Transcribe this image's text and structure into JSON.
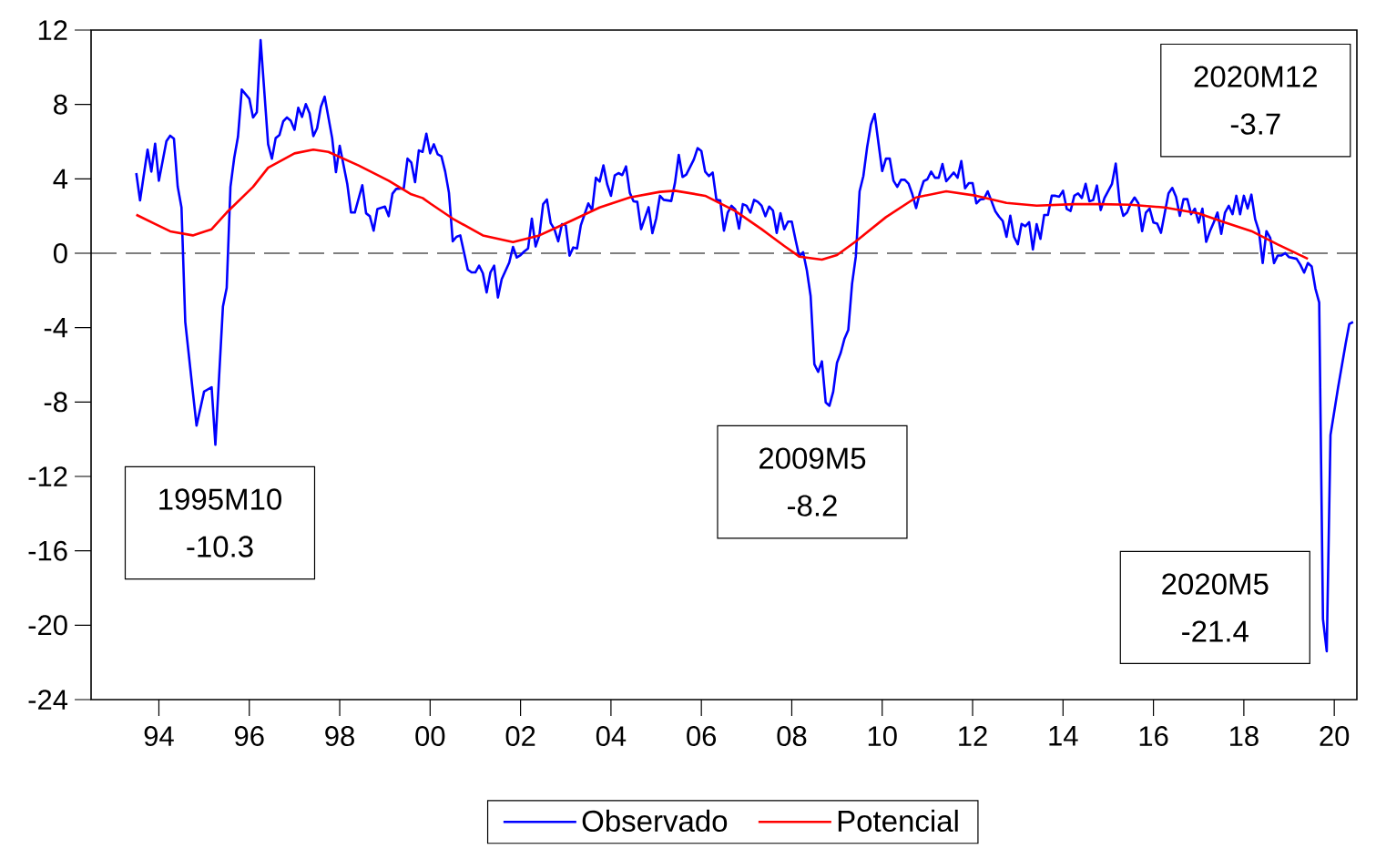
{
  "chart_data": {
    "type": "line",
    "series": [
      {
        "name": "Observado",
        "color": "#0000ff",
        "x": [
          "1994-01",
          "1994-02",
          "1994-04",
          "1994-05",
          "1994-06",
          "1994-07",
          "1994-09",
          "1994-10",
          "1994-11",
          "1994-12",
          "1995-01",
          "1995-02",
          "1995-04",
          "1995-05",
          "1995-07",
          "1995-09",
          "1995-10",
          "1995-12",
          "1996-01",
          "1996-02",
          "1996-03",
          "1996-04",
          "1996-05",
          "1996-07",
          "1996-08",
          "1996-09",
          "1996-10",
          "1996-12",
          "1997-01",
          "1997-02",
          "1997-03",
          "1997-04",
          "1997-05",
          "1997-06",
          "1997-07",
          "1997-08",
          "1997-09",
          "1997-10",
          "1997-11",
          "1997-12",
          "1998-01",
          "1998-02",
          "1998-03",
          "1998-05",
          "1998-06",
          "1998-07",
          "1998-09",
          "1998-10",
          "1998-11",
          "1999-01",
          "1999-02",
          "1999-03",
          "1999-04",
          "1999-05",
          "1999-07",
          "1999-08",
          "1999-09",
          "1999-10",
          "1999-12",
          "2000-01",
          "2000-02",
          "2000-03",
          "2000-04",
          "2000-05",
          "2000-06",
          "2000-07",
          "2000-08",
          "2000-09",
          "2000-10",
          "2000-11",
          "2000-12",
          "2001-01",
          "2001-02",
          "2001-03",
          "2001-05",
          "2001-06",
          "2001-07",
          "2001-08",
          "2001-09",
          "2001-10",
          "2001-11",
          "2001-12",
          "2002-01",
          "2002-02",
          "2002-04",
          "2002-05",
          "2002-06",
          "2002-07",
          "2002-08",
          "2002-09",
          "2002-10",
          "2002-11",
          "2002-12",
          "2003-01",
          "2003-02",
          "2003-03",
          "2003-04",
          "2003-05",
          "2003-06",
          "2003-07",
          "2003-08",
          "2003-09",
          "2003-10",
          "2003-11",
          "2004-01",
          "2004-02",
          "2004-03",
          "2004-04",
          "2004-05",
          "2004-06",
          "2004-07",
          "2004-08",
          "2004-09",
          "2004-10",
          "2004-11",
          "2004-12",
          "2005-01",
          "2005-02",
          "2005-03",
          "2005-05",
          "2005-06",
          "2005-07",
          "2005-08",
          "2005-09",
          "2005-11",
          "2005-12",
          "2006-01",
          "2006-02",
          "2006-03",
          "2006-05",
          "2006-06",
          "2006-07",
          "2006-08",
          "2006-09",
          "2006-10",
          "2006-11",
          "2006-12",
          "2007-01",
          "2007-02",
          "2007-03",
          "2007-04",
          "2007-05",
          "2007-06",
          "2007-07",
          "2007-08",
          "2007-09",
          "2007-10",
          "2007-11",
          "2007-12",
          "2008-01",
          "2008-02",
          "2008-03",
          "2008-04",
          "2008-05",
          "2008-06",
          "2008-07",
          "2008-08",
          "2008-09",
          "2008-10",
          "2008-11",
          "2008-12",
          "2009-01",
          "2009-02",
          "2009-03",
          "2009-04",
          "2009-05",
          "2009-06",
          "2009-07",
          "2009-08",
          "2009-09",
          "2009-10",
          "2009-11",
          "2009-12",
          "2010-01",
          "2010-02",
          "2010-03",
          "2010-04",
          "2010-05",
          "2010-06",
          "2010-07",
          "2010-08",
          "2010-09",
          "2010-10",
          "2010-11",
          "2010-12",
          "2011-01",
          "2011-02",
          "2011-03",
          "2011-04",
          "2011-05",
          "2011-06",
          "2011-07",
          "2011-08",
          "2011-09",
          "2011-10",
          "2011-11",
          "2011-12",
          "2012-02",
          "2012-03",
          "2012-04",
          "2012-05",
          "2012-06",
          "2012-07",
          "2012-08",
          "2012-09",
          "2012-10",
          "2012-11",
          "2012-12",
          "2013-01",
          "2013-02",
          "2013-03",
          "2013-04",
          "2013-05",
          "2013-06",
          "2013-07",
          "2013-08",
          "2013-09",
          "2013-10",
          "2013-11",
          "2013-12",
          "2014-01",
          "2014-02",
          "2014-03",
          "2014-04",
          "2014-05",
          "2014-06",
          "2014-07",
          "2014-08",
          "2014-09",
          "2014-10",
          "2014-11",
          "2014-12",
          "2015-01",
          "2015-02",
          "2015-03",
          "2015-04",
          "2015-05",
          "2015-06",
          "2015-08",
          "2015-09",
          "2015-10",
          "2015-11",
          "2015-12",
          "2016-01",
          "2016-02",
          "2016-03",
          "2016-04",
          "2016-05",
          "2016-06",
          "2016-07",
          "2016-08",
          "2016-09",
          "2016-11",
          "2016-12",
          "2017-01",
          "2017-02",
          "2017-03",
          "2017-04",
          "2017-05",
          "2017-06",
          "2017-07",
          "2017-08",
          "2017-09",
          "2017-10",
          "2017-11",
          "2017-12",
          "2018-01",
          "2018-02",
          "2018-03",
          "2018-04",
          "2018-05",
          "2018-06",
          "2018-07",
          "2018-08",
          "2018-09",
          "2018-10",
          "2018-11",
          "2018-12",
          "2019-01",
          "2019-02",
          "2019-03",
          "2019-04",
          "2019-05",
          "2019-06",
          "2019-07",
          "2019-09",
          "2019-10",
          "2019-11",
          "2019-12",
          "2020-01",
          "2020-02",
          "2020-03",
          "2020-04",
          "2020-05",
          "2020-06",
          "2020-08",
          "2020-10",
          "2020-11",
          "2020-12"
        ],
        "values": [
          4.31,
          2.84,
          5.57,
          4.39,
          5.89,
          3.9,
          6.02,
          6.32,
          6.16,
          3.57,
          2.46,
          -3.69,
          -7.44,
          -9.27,
          -7.44,
          -7.2,
          -10.3,
          -2.87,
          -1.86,
          3.57,
          5.13,
          6.27,
          8.8,
          8.31,
          7.3,
          7.58,
          11.46,
          5.86,
          5.08,
          6.19,
          6.35,
          7.09,
          7.3,
          7.13,
          6.64,
          7.82,
          7.33,
          8.02,
          7.53,
          6.3,
          6.72,
          7.87,
          8.42,
          6.19,
          4.36,
          5.78,
          3.74,
          2.19,
          2.19,
          3.66,
          2.15,
          1.99,
          1.21,
          2.38,
          2.51,
          1.99,
          3.2,
          3.46,
          3.49,
          5.09,
          4.88,
          3.82,
          5.53,
          5.45,
          6.43,
          5.37,
          5.86,
          5.32,
          5.21,
          4.39,
          3.25,
          0.64,
          0.88,
          0.96,
          -0.88,
          -1.03,
          -1.03,
          -0.67,
          -1.08,
          -2.11,
          -1.04,
          -0.67,
          -2.38,
          -1.4,
          -0.5,
          0.34,
          -0.23,
          -0.1,
          0.1,
          0.26,
          1.86,
          0.36,
          0.96,
          2.64,
          2.89,
          1.62,
          1.29,
          0.64,
          1.57,
          1.5,
          -0.13,
          0.31,
          0.26,
          1.5,
          2.68,
          2.32,
          4.06,
          3.85,
          4.72,
          3.71,
          3.09,
          4.18,
          4.31,
          4.2,
          4.67,
          3.25,
          2.79,
          2.76,
          1.29,
          2.48,
          1.08,
          1.86,
          3.09,
          2.87,
          2.81,
          3.79,
          5.29,
          4.1,
          4.23,
          5.04,
          5.65,
          5.5,
          4.39,
          4.15,
          4.34,
          2.87,
          2.84,
          1.21,
          2.19,
          2.55,
          2.35,
          1.32,
          2.64,
          2.55,
          2.19,
          2.87,
          2.76,
          2.55,
          1.99,
          2.51,
          2.3,
          1.09,
          2.15,
          1.29,
          1.7,
          1.7,
          0.72,
          -0.18,
          0.06,
          -0.92,
          -2.3,
          -5.97,
          -6.38,
          -5.81,
          -8.02,
          -8.2,
          -7.44,
          -5.89,
          -5.35,
          -4.59,
          -4.13,
          -1.65,
          -0.18,
          3.33,
          4.15,
          5.7,
          6.92,
          7.49,
          5.94,
          4.42,
          5.09,
          5.09,
          3.9,
          3.57,
          3.95,
          3.95,
          3.74,
          3.17,
          2.43,
          3.25,
          3.87,
          3.98,
          4.39,
          4.06,
          4.06,
          4.8,
          3.87,
          4.34,
          4.06,
          4.96,
          3.49,
          3.77,
          3.77,
          2.68,
          2.89,
          2.92,
          3.33,
          2.81,
          2.27,
          1.97,
          1.73,
          0.88,
          2.02,
          0.88,
          0.48,
          1.58,
          1.45,
          1.67,
          0.2,
          1.57,
          0.77,
          2.06,
          2.06,
          3.09,
          3.09,
          3.04,
          3.36,
          2.38,
          2.27,
          3.09,
          3.22,
          2.97,
          3.73,
          2.79,
          2.86,
          3.64,
          2.32,
          2.97,
          3.73,
          4.82,
          2.79,
          2.01,
          2.19,
          2.68,
          3.0,
          2.68,
          1.19,
          2.19,
          2.4,
          1.65,
          1.59,
          1.1,
          3.22,
          3.51,
          3.04,
          2.01,
          2.91,
          2.91,
          2.1,
          2.4,
          1.65,
          2.4,
          0.61,
          1.19,
          1.65,
          2.19,
          1.04,
          2.19,
          2.55,
          2.1,
          3.09,
          2.1,
          3.09,
          2.4,
          3.15,
          1.83,
          1.19,
          -0.53,
          1.19,
          0.83,
          -0.53,
          -0.12,
          -0.12,
          0.01,
          -0.21,
          -0.3,
          -0.62,
          -1.04,
          -0.53,
          -0.71,
          -1.9,
          -2.65,
          -19.67,
          -21.4,
          -9.78,
          -7.24,
          -4.89,
          -3.8,
          -3.7
        ]
      },
      {
        "name": "Potencial",
        "color": "#ff0000",
        "x": [
          "1994-01",
          "1994-06",
          "1994-10",
          "1995-04",
          "1995-09",
          "1996-01",
          "1996-08",
          "1996-12",
          "1997-07",
          "1997-12",
          "1998-04",
          "1998-12",
          "1999-08",
          "2000-02",
          "2000-05",
          "2000-07",
          "2001-01",
          "2001-09",
          "2002-05",
          "2002-12",
          "2003-08",
          "2004-04",
          "2004-12",
          "2005-08",
          "2005-12",
          "2006-08",
          "2007-04",
          "2007-11",
          "2008-05",
          "2008-09",
          "2009-03",
          "2009-07",
          "2009-12",
          "2010-08",
          "2011-04",
          "2011-12",
          "2012-08",
          "2013-04",
          "2013-12",
          "2014-10",
          "2015-05",
          "2016-01",
          "2016-10",
          "2017-07",
          "2018-02",
          "2018-09",
          "2019-04",
          "2019-12"
        ],
        "values": [
          2.07,
          1.57,
          1.18,
          0.96,
          1.29,
          2.19,
          3.57,
          4.6,
          5.37,
          5.57,
          5.45,
          4.72,
          3.9,
          3.17,
          2.97,
          2.68,
          1.86,
          0.96,
          0.6,
          0.96,
          1.7,
          2.46,
          3.0,
          3.3,
          3.36,
          3.09,
          2.27,
          1.29,
          0.39,
          -0.18,
          -0.34,
          -0.1,
          0.64,
          1.94,
          3.0,
          3.33,
          3.09,
          2.71,
          2.56,
          2.64,
          2.64,
          2.61,
          2.46,
          2.14,
          1.65,
          1.19,
          0.47,
          -0.3
        ]
      }
    ],
    "xlim": [
      "1993-01",
      "2021-01"
    ],
    "ylim": [
      -24,
      12
    ],
    "yticks": [
      -24,
      -20,
      -16,
      -12,
      -8,
      -4,
      0,
      4,
      8,
      12
    ],
    "xticks": [
      {
        "value": "1994-07",
        "label": "94"
      },
      {
        "value": "1996-07",
        "label": "96"
      },
      {
        "value": "1998-07",
        "label": "98"
      },
      {
        "value": "2000-07",
        "label": "00"
      },
      {
        "value": "2002-07",
        "label": "02"
      },
      {
        "value": "2004-07",
        "label": "04"
      },
      {
        "value": "2006-07",
        "label": "06"
      },
      {
        "value": "2008-07",
        "label": "08"
      },
      {
        "value": "2010-07",
        "label": "10"
      },
      {
        "value": "2012-07",
        "label": "12"
      },
      {
        "value": "2014-07",
        "label": "14"
      },
      {
        "value": "2016-07",
        "label": "16"
      },
      {
        "value": "2018-07",
        "label": "18"
      },
      {
        "value": "2020-07",
        "label": "20"
      }
    ],
    "ref_lines": [
      {
        "axis": "y",
        "value": 0,
        "color": "#000000",
        "line_style": "dashed"
      }
    ],
    "annotations": [
      {
        "text": "1995M10 -10.3",
        "x": "1995-10",
        "y": -10.3
      },
      {
        "text": "2009M5 -8.2",
        "x": "2009-05",
        "y": -8.2
      },
      {
        "text": "2020M5 -21.4",
        "x": "2020-05",
        "y": -21.4
      },
      "2020M12 -3.7"
    ],
    "legend": "bottom",
    "grid": false,
    "line_style": "solid"
  }
}
